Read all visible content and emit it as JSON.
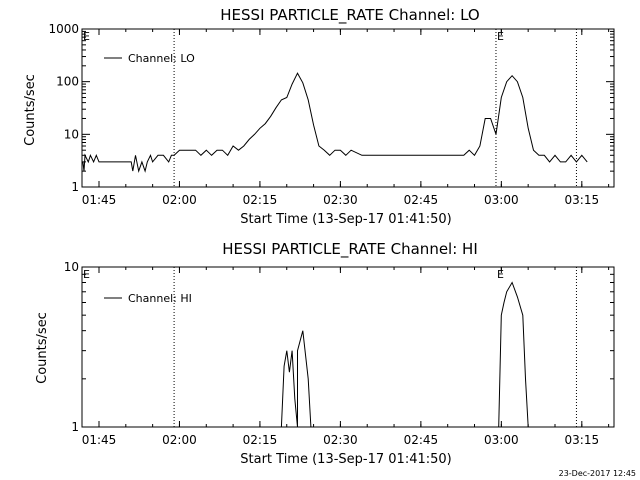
{
  "footer": {
    "timestamp": "23-Dec-2017 12:45"
  },
  "chart_data": [
    {
      "type": "line",
      "title": "HESSI PARTICLE_RATE Channel: LO",
      "xlabel": "Start Time (13-Sep-17 01:41:50)",
      "ylabel": "Counts/sec",
      "yscale": "log",
      "ylim": [
        1,
        1000
      ],
      "xlim": [
        "01:41:50",
        "03:21:00"
      ],
      "xticks": [
        "01:45",
        "02:00",
        "02:15",
        "02:30",
        "02:45",
        "03:00",
        "03:15"
      ],
      "yticks": [
        "1",
        "10",
        "100",
        "1000"
      ],
      "vlines": [
        "01:59",
        "02:59",
        "03:14"
      ],
      "eclipse_marks": [
        {
          "label": "E",
          "x": "01:41:50"
        },
        {
          "label": "E",
          "x": "02:59"
        }
      ],
      "legend": {
        "position": "top-left",
        "entries": [
          "Channel: LO"
        ]
      },
      "series": [
        {
          "name": "Channel: LO",
          "points": [
            [
              "01:42",
              3
            ],
            [
              "01:42.2",
              2
            ],
            [
              "01:42.4",
              4
            ],
            [
              "01:43",
              3
            ],
            [
              "01:43.4",
              4
            ],
            [
              "01:44",
              3
            ],
            [
              "01:44.5",
              4
            ],
            [
              "01:45",
              3
            ],
            [
              "01:50",
              3
            ],
            [
              "01:51",
              3
            ],
            [
              "01:51.3",
              2
            ],
            [
              "01:51.8",
              4
            ],
            [
              "01:52.4",
              2
            ],
            [
              "01:53",
              3
            ],
            [
              "01:53.6",
              2
            ],
            [
              "01:54",
              3
            ],
            [
              "01:54.6",
              4
            ],
            [
              "01:55",
              3
            ],
            [
              "01:56",
              4
            ],
            [
              "01:57",
              4
            ],
            [
              "01:58",
              3
            ],
            [
              "01:58.5",
              4
            ],
            [
              "01:59",
              4
            ],
            [
              "02:00",
              5
            ],
            [
              "02:03",
              5
            ],
            [
              "02:04",
              4
            ],
            [
              "02:05",
              5
            ],
            [
              "02:06",
              4
            ],
            [
              "02:07",
              5
            ],
            [
              "02:08",
              5
            ],
            [
              "02:09",
              4
            ],
            [
              "02:10",
              6
            ],
            [
              "02:11",
              5
            ],
            [
              "02:12",
              6
            ],
            [
              "02:13",
              8
            ],
            [
              "02:14",
              10
            ],
            [
              "02:15",
              13
            ],
            [
              "02:16",
              16
            ],
            [
              "02:17",
              22
            ],
            [
              "02:18",
              32
            ],
            [
              "02:19",
              45
            ],
            [
              "02:20",
              50
            ],
            [
              "02:21",
              90
            ],
            [
              "02:22",
              145
            ],
            [
              "02:23",
              95
            ],
            [
              "02:24",
              45
            ],
            [
              "02:25",
              15
            ],
            [
              "02:26",
              6
            ],
            [
              "02:27",
              5
            ],
            [
              "02:28",
              4
            ],
            [
              "02:29",
              5
            ],
            [
              "02:30",
              5
            ],
            [
              "02:31",
              4
            ],
            [
              "02:32",
              5
            ],
            [
              "02:34",
              4
            ],
            [
              "02:36",
              4
            ],
            [
              "02:40",
              4
            ],
            [
              "02:45",
              4
            ],
            [
              "02:50",
              4
            ],
            [
              "02:53",
              4
            ],
            [
              "02:54",
              5
            ],
            [
              "02:55",
              4
            ],
            [
              "02:56",
              6
            ],
            [
              "02:57",
              20
            ],
            [
              "02:58",
              20
            ],
            [
              "02:59",
              10
            ],
            [
              "03:00",
              50
            ],
            [
              "03:01",
              100
            ],
            [
              "03:02",
              130
            ],
            [
              "03:03",
              100
            ],
            [
              "03:04",
              50
            ],
            [
              "03:05",
              13
            ],
            [
              "03:06",
              5
            ],
            [
              "03:07",
              4
            ],
            [
              "03:08",
              4
            ],
            [
              "03:09",
              3
            ],
            [
              "03:10",
              4
            ],
            [
              "03:11",
              3
            ],
            [
              "03:12",
              3
            ],
            [
              "03:13",
              4
            ],
            [
              "03:14",
              3
            ],
            [
              "03:15",
              4
            ],
            [
              "03:16",
              3
            ]
          ]
        }
      ]
    },
    {
      "type": "line",
      "title": "HESSI PARTICLE_RATE Channel: HI",
      "xlabel": "Start Time (13-Sep-17 01:41:50)",
      "ylabel": "Counts/sec",
      "yscale": "log",
      "ylim": [
        1,
        10
      ],
      "xlim": [
        "01:41:50",
        "03:21:00"
      ],
      "xticks": [
        "01:45",
        "02:00",
        "02:15",
        "02:30",
        "02:45",
        "03:00",
        "03:15"
      ],
      "yticks": [
        "1",
        "10"
      ],
      "vlines": [
        "01:59",
        "03:14"
      ],
      "eclipse_marks": [
        {
          "label": "E",
          "x": "01:41:50"
        },
        {
          "label": "E",
          "x": "02:59"
        }
      ],
      "legend": {
        "position": "top-left",
        "entries": [
          "Channel: HI"
        ]
      },
      "series": [
        {
          "name": "Channel: HI",
          "segments": [
            [
              [
                "02:19",
                1
              ],
              [
                "02:19.5",
                2.4
              ],
              [
                "02:20",
                3
              ],
              [
                "02:20.5",
                2.2
              ],
              [
                "02:21",
                3
              ],
              [
                "02:21.5",
                1.5
              ],
              [
                "02:22",
                1
              ]
            ],
            [
              [
                "02:22",
                1
              ],
              [
                "02:22",
                3
              ],
              [
                "02:23",
                4
              ],
              [
                "02:24",
                2
              ],
              [
                "02:24.5",
                1
              ]
            ],
            [
              [
                "02:59.5",
                1
              ],
              [
                "03:00",
                5
              ],
              [
                "03:00.5",
                6
              ],
              [
                "03:01",
                7
              ],
              [
                "03:02",
                8
              ],
              [
                "03:03",
                6.5
              ],
              [
                "03:04",
                5
              ],
              [
                "03:04.5",
                2
              ],
              [
                "03:05",
                1
              ]
            ]
          ]
        }
      ]
    }
  ]
}
